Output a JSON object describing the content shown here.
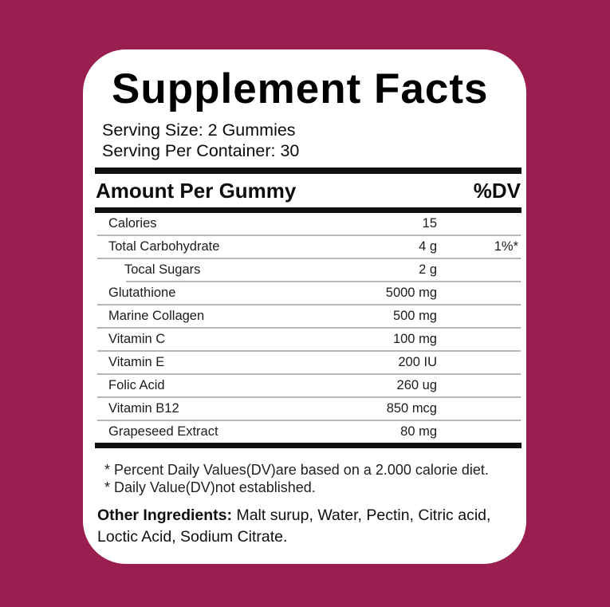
{
  "colors": {
    "background": "#9A1E50",
    "card": "#FFFFFF",
    "bar": "#0f0f0f",
    "separator": "#b7b7b7",
    "text": "#000000"
  },
  "label": {
    "title": "Supplement Facts",
    "serving_size": "Serving Size: 2 Gummies",
    "serving_per_container": "Serving Per Container: 30",
    "header": {
      "amount_col": "Amount Per Gummy",
      "dv_col": "%DV"
    },
    "rows": [
      {
        "name": "Calories",
        "amount": "15",
        "dv": "",
        "indent": false
      },
      {
        "name": "Total Carbohydrate",
        "amount": "4 g",
        "dv": "1%*",
        "indent": false
      },
      {
        "name": "Tocal Sugars",
        "amount": "2 g",
        "dv": "",
        "indent": true
      },
      {
        "name": "Glutathione",
        "amount": "5000 mg",
        "dv": "",
        "indent": false
      },
      {
        "name": "Marine Collagen",
        "amount": "500 mg",
        "dv": "",
        "indent": false
      },
      {
        "name": "Vitamin C",
        "amount": "100 mg",
        "dv": "",
        "indent": false
      },
      {
        "name": "Vitamin E",
        "amount": "200 IU",
        "dv": "",
        "indent": false
      },
      {
        "name": "Folic Acid",
        "amount": "260 ug",
        "dv": "",
        "indent": false
      },
      {
        "name": "Vitamin B12",
        "amount": "850 mcg",
        "dv": "",
        "indent": false
      },
      {
        "name": "Grapeseed Extract",
        "amount": "80 mg",
        "dv": "",
        "indent": false
      }
    ],
    "footnotes": [
      "* Percent Daily Values(DV)are based on a 2.000 calorie diet.",
      "* Daily Value(DV)not established."
    ],
    "other_ingredients_label": "Other Ingredients:",
    "other_ingredients_text": " Malt surup, Water, Pectin, Citric acid, Loctic Acid, Sodium Citrate."
  }
}
